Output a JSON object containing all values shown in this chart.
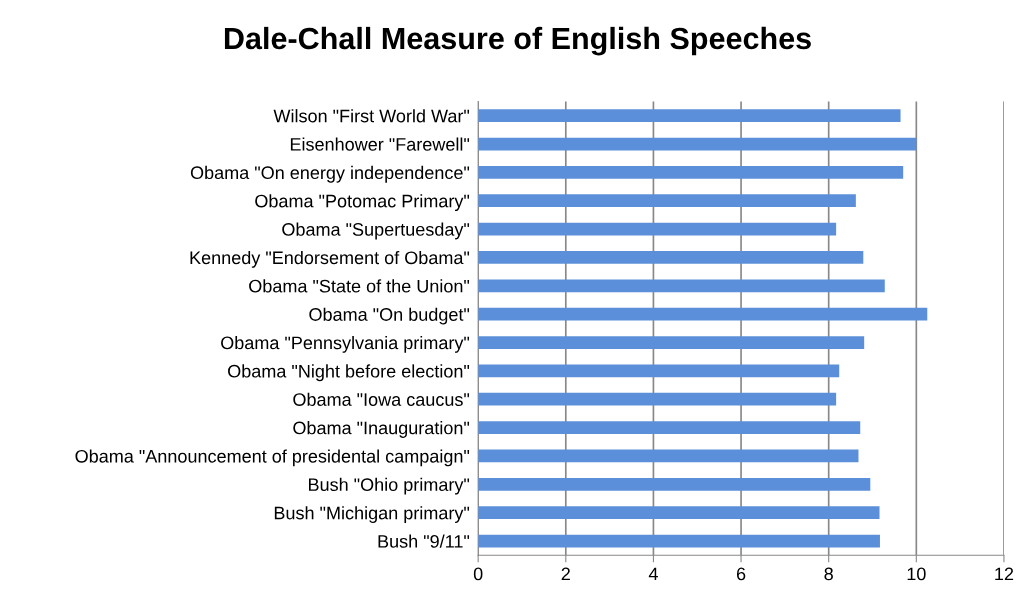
{
  "chart_data": {
    "type": "bar",
    "orientation": "horizontal",
    "title": "Dale-Chall Measure of English Speeches",
    "categories": [
      "Wilson \"First World War\"",
      "Eisenhower \"Farewell\"",
      "Obama \"On energy independence\"",
      "Obama \"Potomac Primary\"",
      "Obama \"Supertuesday\"",
      "Kennedy \"Endorsement of Obama\"",
      "Obama \"State of the Union\"",
      "Obama \"On budget\"",
      "Obama \"Pennsylvania primary\"",
      "Obama \"Night before election\"",
      "Obama \"Iowa caucus\"",
      "Obama \"Inauguration\"",
      "Obama \"Announcement of presidental campaign\"",
      "Bush \"Ohio primary\"",
      "Bush \"Michigan primary\"",
      "Bush \"9/11\""
    ],
    "values": [
      9.64,
      10.0,
      9.7,
      8.62,
      8.17,
      8.79,
      9.28,
      10.25,
      8.81,
      8.24,
      8.17,
      8.72,
      8.68,
      8.95,
      9.16,
      9.17
    ],
    "color": "#5b8fd9",
    "xlim": [
      0,
      12
    ],
    "xticks": [
      0,
      2,
      4,
      6,
      8,
      10,
      12
    ],
    "grid": "x",
    "legend": false
  }
}
